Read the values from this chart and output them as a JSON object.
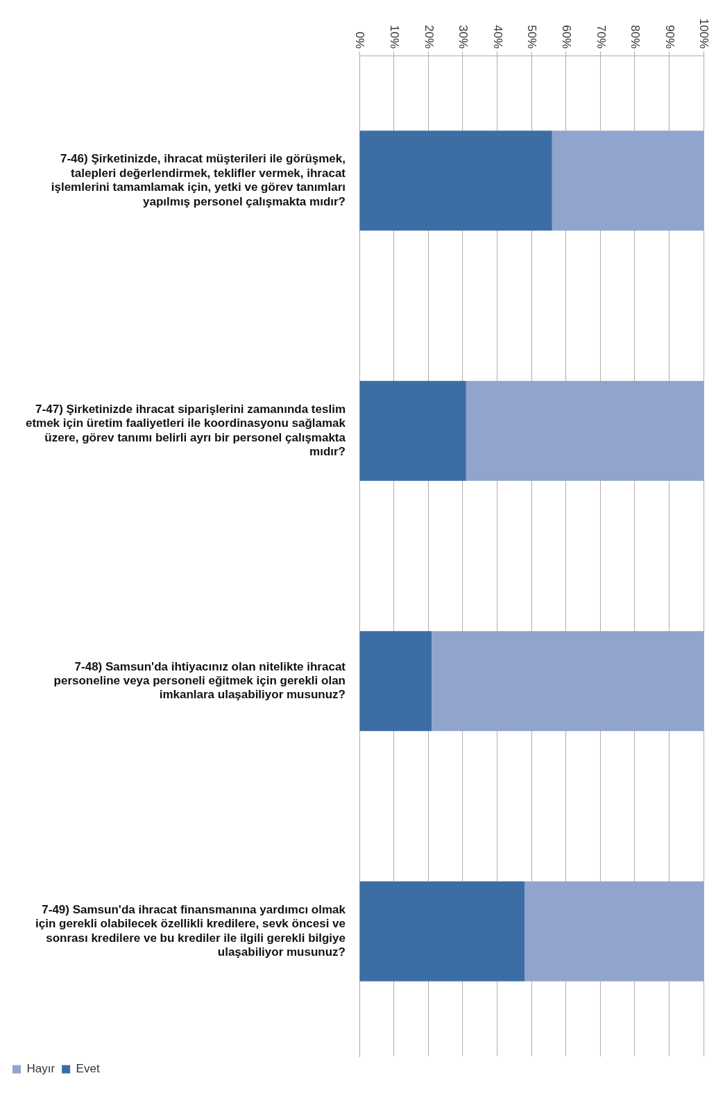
{
  "chart_data": {
    "type": "bar",
    "orientation": "horizontal",
    "stacked": true,
    "categories": [
      "7-46) Şirketinizde, ihracat müşterileri ile görüşmek, talepleri değerlendirmek, teklifler vermek, ihracat işlemlerini tamamlamak için, yetki ve görev tanımları yapılmış personel çalışmakta mıdır?",
      "7-47) Şirketinizde ihracat siparişlerini zamanında teslim etmek için üretim faaliyetleri ile koordinasyonu sağlamak üzere, görev tanımı belirli ayrı bir personel çalışmakta mıdır?",
      "7-48) Samsun'da ihtiyacınız olan nitelikte ihracat personeline veya personeli eğitmek için gerekli olan imkanlara ulaşabiliyor musunuz?",
      "7-49) Samsun'da ihracat finansmanına yardımcı olmak için gerekli olabilecek özellikli kredilere, sevk öncesi ve sonrası kredilere ve bu krediler ile ilgili gerekli bilgiye ulaşabiliyor musunuz?"
    ],
    "series": [
      {
        "name": "Evet",
        "color": "#3c6ea5",
        "values": [
          56,
          31,
          21,
          48
        ]
      },
      {
        "name": "Hayır",
        "color": "#91a5cc",
        "values": [
          44,
          69,
          79,
          52
        ]
      }
    ],
    "xlim": [
      0,
      100
    ],
    "xticks": [
      {
        "value": 0,
        "label": "0%"
      },
      {
        "value": 10,
        "label": "10%"
      },
      {
        "value": 20,
        "label": "20%"
      },
      {
        "value": 30,
        "label": "30%"
      },
      {
        "value": 40,
        "label": "40%"
      },
      {
        "value": 50,
        "label": "50%"
      },
      {
        "value": 60,
        "label": "60%"
      },
      {
        "value": 70,
        "label": "70%"
      },
      {
        "value": 80,
        "label": "80%"
      },
      {
        "value": 90,
        "label": "90%"
      },
      {
        "value": 100,
        "label": "100%"
      }
    ],
    "grid": "x",
    "legend": "bottom"
  }
}
